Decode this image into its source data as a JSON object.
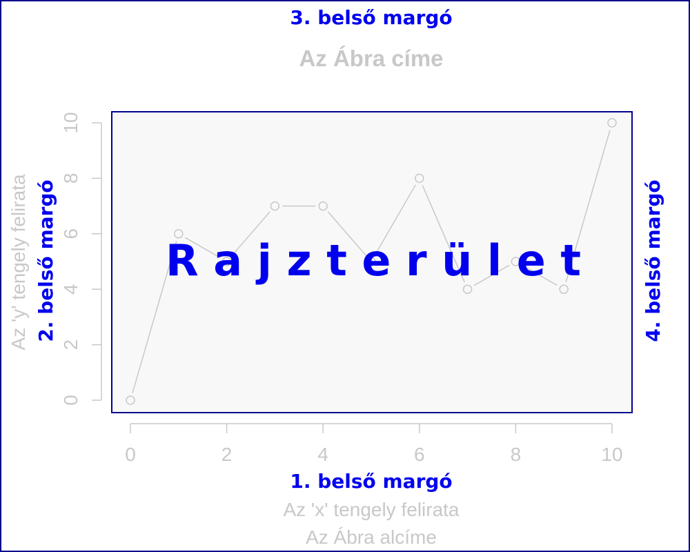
{
  "colors": {
    "outer_border": "#00008b",
    "plot_border": "#00008b",
    "plot_background": "#f8f8f8",
    "gray": "#c8c8c8",
    "margin_label": "#0000ee"
  },
  "margins": {
    "bottom": "1. belső margó",
    "left": "2. belső margó",
    "top": "3. belső margó",
    "right": "4. belső margó"
  },
  "plot_area_label": "R a j z t e r ü l e t",
  "chart_data": {
    "type": "line",
    "title": "Az Ábra címe",
    "subtitle": "Az Ábra alcíme",
    "xlabel": "Az 'x' tengely felirata",
    "ylabel": "Az 'y' tengely felirata",
    "x": [
      0,
      1,
      2,
      3,
      4,
      5,
      6,
      7,
      8,
      9,
      10
    ],
    "y": [
      0,
      6,
      5,
      7,
      7,
      5,
      8,
      4,
      5,
      4,
      10
    ],
    "xlim": [
      0,
      10
    ],
    "ylim": [
      0,
      10
    ],
    "xticks": [
      "0",
      "2",
      "4",
      "6",
      "8",
      "10"
    ],
    "yticks": [
      "0",
      "2",
      "4",
      "6",
      "8",
      "10"
    ],
    "marker": "open-circle",
    "grid": false
  }
}
